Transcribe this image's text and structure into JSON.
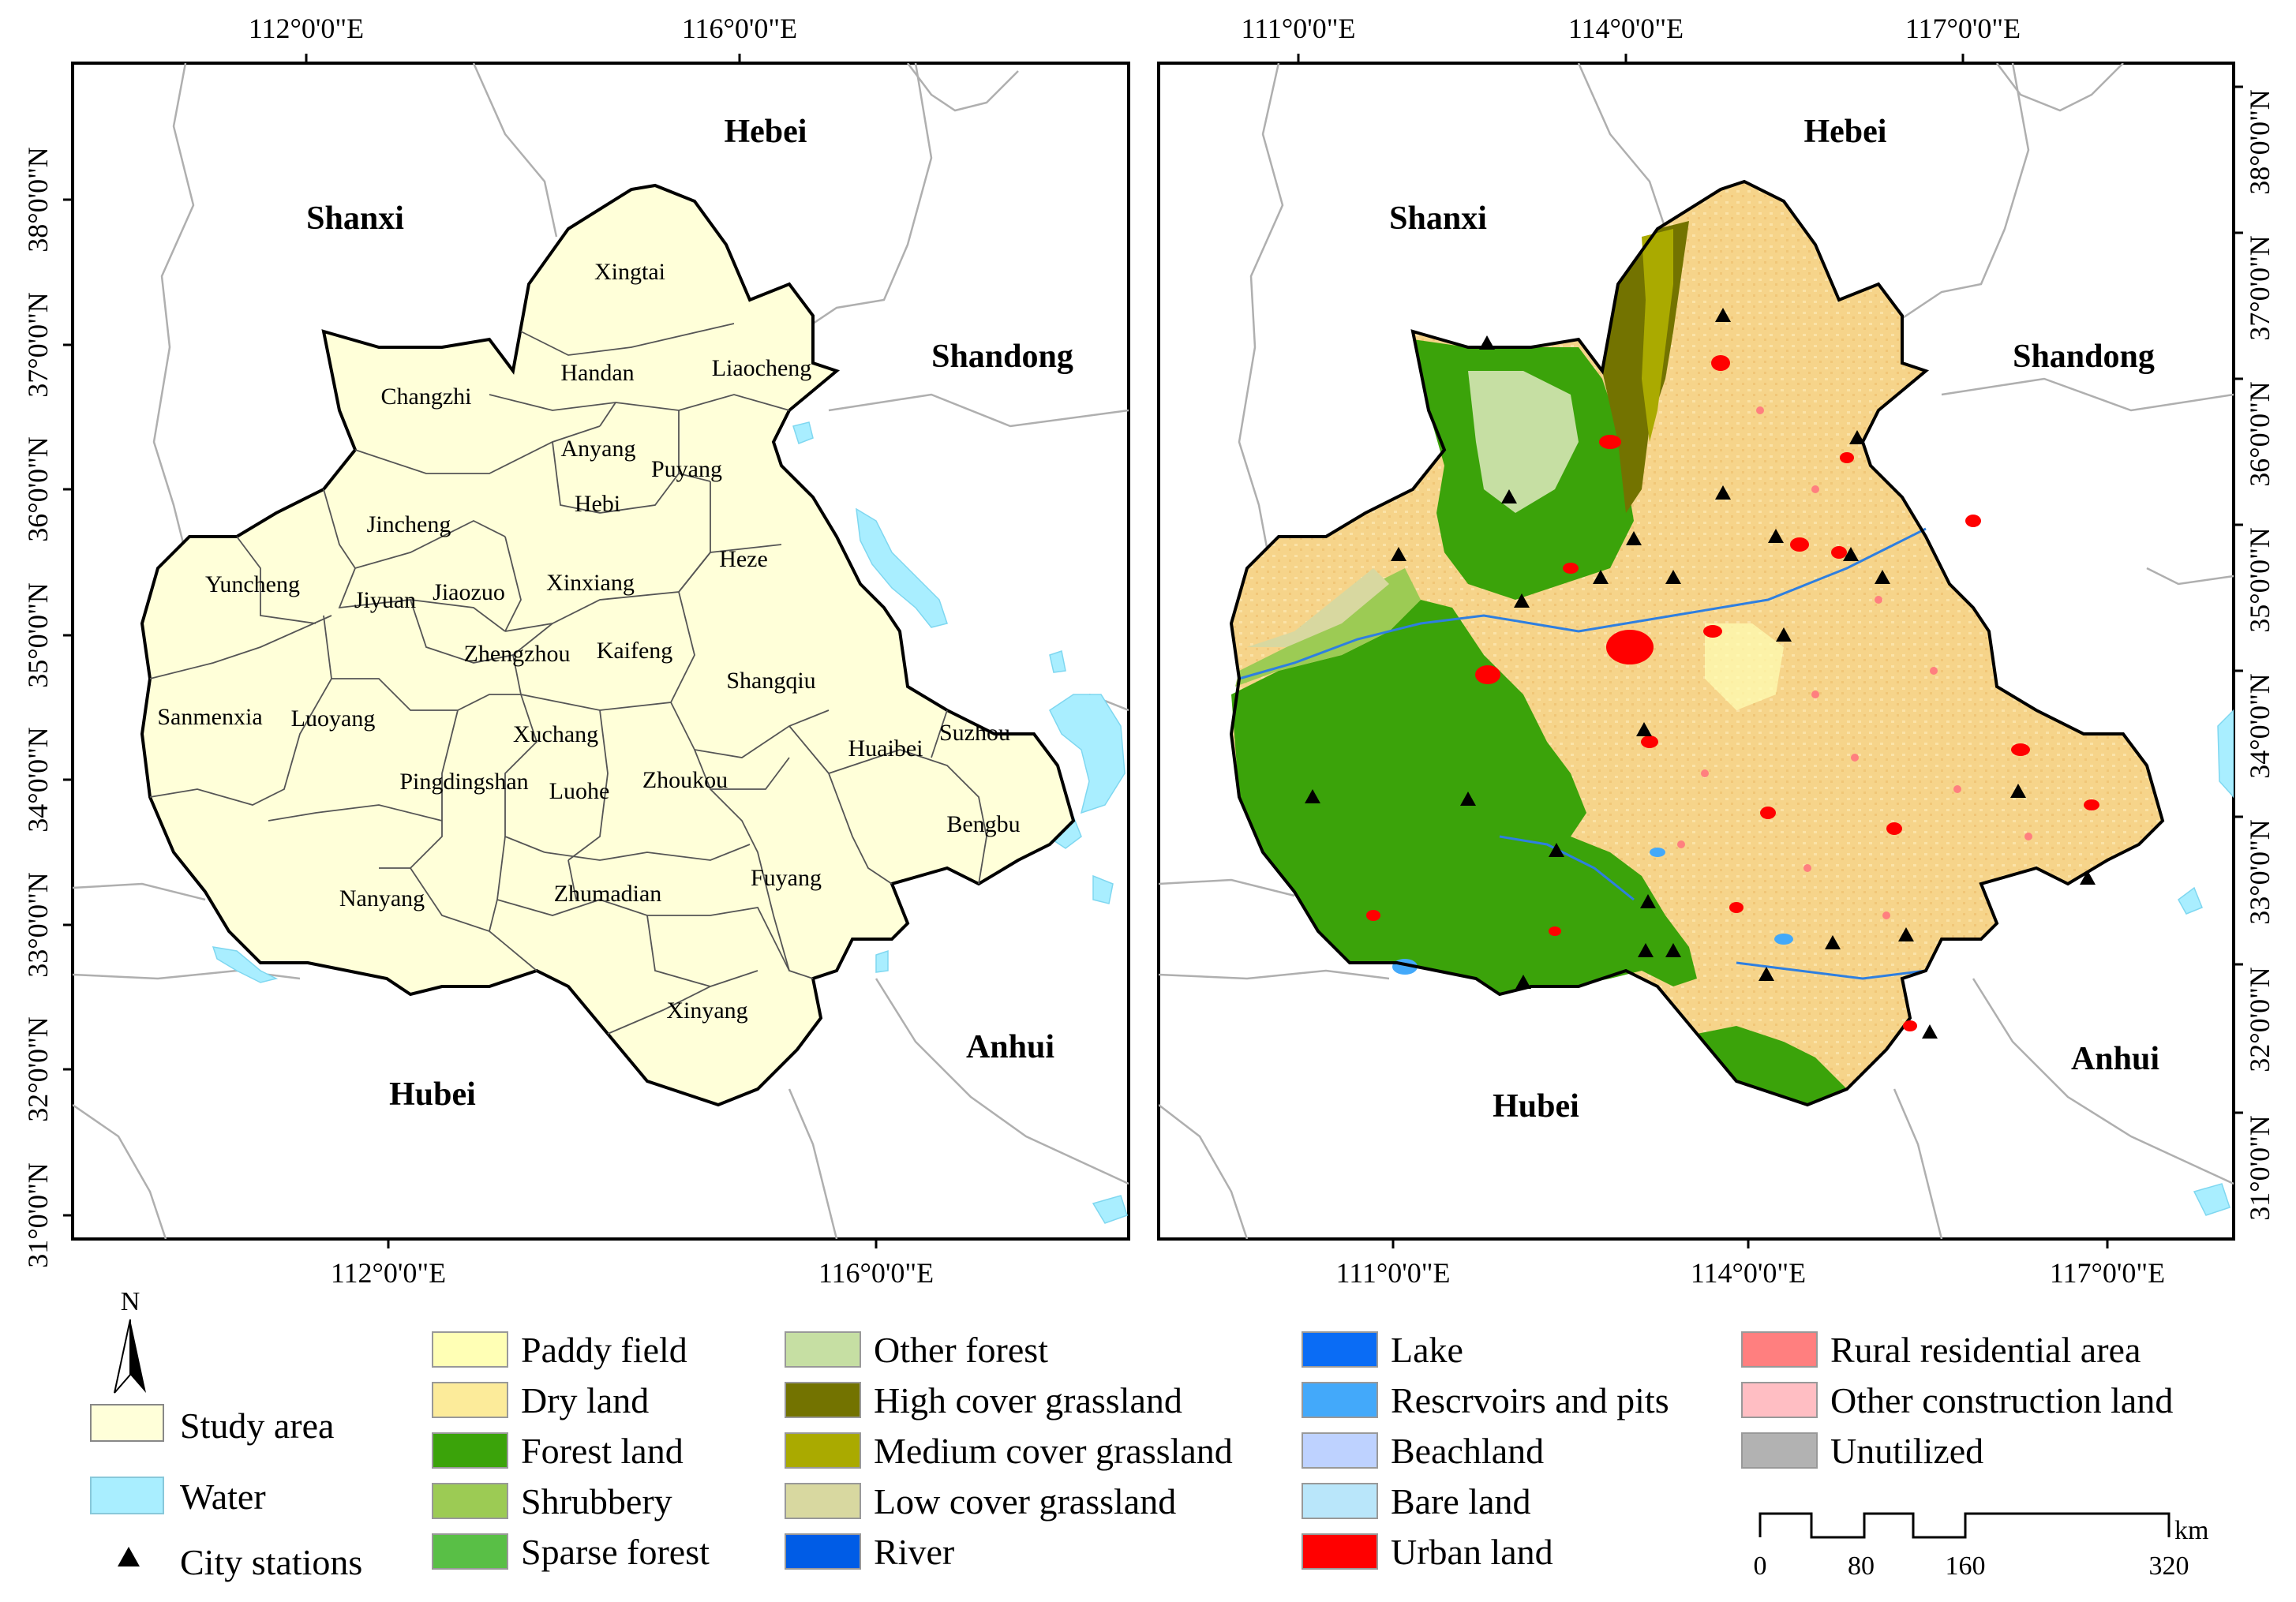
{
  "left_map": {
    "top_ticks": [
      "112°0'0\"E",
      "116°0'0\"E"
    ],
    "bottom_ticks": [
      "112°0'0\"E",
      "116°0'0\"E"
    ],
    "left_ticks": [
      "38°0'0\"N",
      "37°0'0\"N",
      "36°0'0\"N",
      "35°0'0\"N",
      "34°0'0\"N",
      "33°0'0\"N",
      "32°0'0\"N",
      "31°0'0\"N"
    ],
    "provinces": [
      "Hebei",
      "Shanxi",
      "Shandong",
      "Anhui",
      "Hubei"
    ],
    "cities": [
      "Xingtai",
      "Handan",
      "Liaocheng",
      "Changzhi",
      "Anyang",
      "Puyang",
      "Hebi",
      "Jincheng",
      "Heze",
      "Yuncheng",
      "Jiyuan",
      "Jiaozuo",
      "Xinxiang",
      "Zhengzhou",
      "Kaifeng",
      "Shangqiu",
      "Sanmenxia",
      "Luoyang",
      "Xuchang",
      "Huaibei",
      "Suzhou",
      "Pingdingshan",
      "Luohe",
      "Zhoukou",
      "Bengbu",
      "Fuyang",
      "Nanyang",
      "Zhumadian",
      "Xinyang"
    ]
  },
  "right_map": {
    "top_ticks": [
      "111°0'0\"E",
      "114°0'0\"E",
      "117°0'0\"E"
    ],
    "bottom_ticks": [
      "111°0'0\"E",
      "114°0'0\"E",
      "117°0'0\"E"
    ],
    "right_ticks": [
      "38°0'0\"N",
      "37°0'0\"N",
      "36°0'0\"N",
      "35°0'0\"N",
      "34°0'0\"N",
      "33°0'0\"N",
      "32°0'0\"N",
      "31°0'0\"N"
    ],
    "provinces": [
      "Hebei",
      "Shanxi",
      "Shandong",
      "Anhui",
      "Hubei"
    ]
  },
  "legend_left": {
    "north": "N",
    "items": [
      {
        "label": "Study area",
        "color": "#FFFFD9",
        "kind": "box"
      },
      {
        "label": "Water",
        "color": "#A9EEFF",
        "kind": "box"
      },
      {
        "label": "City stations",
        "color": "#000000",
        "kind": "triangle"
      }
    ]
  },
  "landuse_legend": [
    {
      "label": "Paddy field",
      "color": "#FFFFB5"
    },
    {
      "label": "Dry land",
      "color": "#FCEB9A"
    },
    {
      "label": "Forest land",
      "color": "#3BA30A"
    },
    {
      "label": "Shrubbery",
      "color": "#9CCB54"
    },
    {
      "label": "Sparse forest",
      "color": "#59BF46"
    },
    {
      "label": "Other forest",
      "color": "#C6DFA3"
    },
    {
      "label": "High cover grassland",
      "color": "#737300"
    },
    {
      "label": "Medium cover grassland",
      "color": "#AAAA00"
    },
    {
      "label": "Low cover grassland",
      "color": "#D8D8A0"
    },
    {
      "label": "River",
      "color": "#005CE6"
    },
    {
      "label": "Lake",
      "color": "#0A6CF5"
    },
    {
      "label": "Rescrvoirs and pits",
      "color": "#43A9FA"
    },
    {
      "label": "Beachland",
      "color": "#BED2FF"
    },
    {
      "label": "Bare land",
      "color": "#B9E6FA"
    },
    {
      "label": "Urban land",
      "color": "#FF0000"
    },
    {
      "label": "Rural residential area",
      "color": "#FF7F7F"
    },
    {
      "label": "Other construction land",
      "color": "#FFBEC3"
    },
    {
      "label": "Unutilized",
      "color": "#B2B2B2"
    }
  ],
  "scale_bar": {
    "unit": "km",
    "labels": [
      "0",
      "80",
      "160",
      "320"
    ]
  },
  "colors": {
    "study_area": "#FFFFD9",
    "water": "#A9EEFF",
    "dry_land": "#F7D98E",
    "forest": "#3BA30A",
    "urban": "#FF0000",
    "boundary": "#AAAAAA"
  }
}
